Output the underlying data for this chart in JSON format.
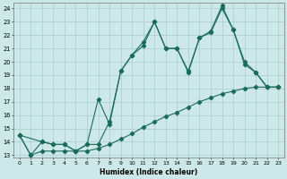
{
  "title": "",
  "xlabel": "Humidex (Indice chaleur)",
  "bg_color": "#cce8e8",
  "grid_color": "#aacccc",
  "line_color": "#1a6b5a",
  "xlim": [
    -0.5,
    23.5
  ],
  "ylim": [
    12.8,
    24.4
  ],
  "xticks": [
    0,
    1,
    2,
    3,
    4,
    5,
    6,
    7,
    8,
    9,
    10,
    11,
    12,
    13,
    14,
    15,
    16,
    17,
    18,
    19,
    20,
    21,
    22,
    23
  ],
  "yticks": [
    13,
    14,
    15,
    16,
    17,
    18,
    19,
    20,
    21,
    22,
    23,
    24
  ],
  "series1_x": [
    0,
    1,
    2,
    3,
    4,
    5,
    6,
    7,
    8,
    9,
    10,
    11,
    12,
    13,
    14,
    15,
    16,
    17,
    18,
    19,
    20,
    21,
    22,
    23
  ],
  "series1_y": [
    14.5,
    13.0,
    14.0,
    13.8,
    13.8,
    13.3,
    13.8,
    17.2,
    15.3,
    19.3,
    20.5,
    21.2,
    23.0,
    21.0,
    21.0,
    19.3,
    21.8,
    22.2,
    24.0,
    22.4,
    20.0,
    19.2,
    18.1,
    18.1
  ],
  "series2_x": [
    0,
    2,
    3,
    4,
    5,
    6,
    7,
    8,
    9,
    10,
    11,
    12,
    13,
    14,
    15,
    16,
    17,
    18,
    19,
    20,
    21,
    22,
    23
  ],
  "series2_y": [
    14.5,
    14.0,
    13.8,
    13.8,
    13.3,
    13.8,
    13.8,
    15.5,
    19.3,
    20.5,
    21.5,
    23.0,
    21.0,
    21.0,
    19.2,
    21.8,
    22.3,
    24.2,
    22.4,
    19.8,
    19.2,
    18.1,
    18.1
  ],
  "series3_x": [
    0,
    1,
    2,
    3,
    4,
    5,
    6,
    7,
    8,
    9,
    10,
    11,
    12,
    13,
    14,
    15,
    16,
    17,
    18,
    19,
    20,
    21,
    22,
    23
  ],
  "series3_y": [
    14.5,
    13.0,
    13.3,
    13.3,
    13.3,
    13.3,
    13.3,
    13.5,
    13.8,
    14.2,
    14.6,
    15.1,
    15.5,
    15.9,
    16.2,
    16.6,
    17.0,
    17.3,
    17.6,
    17.8,
    18.0,
    18.1,
    18.1,
    18.1
  ]
}
